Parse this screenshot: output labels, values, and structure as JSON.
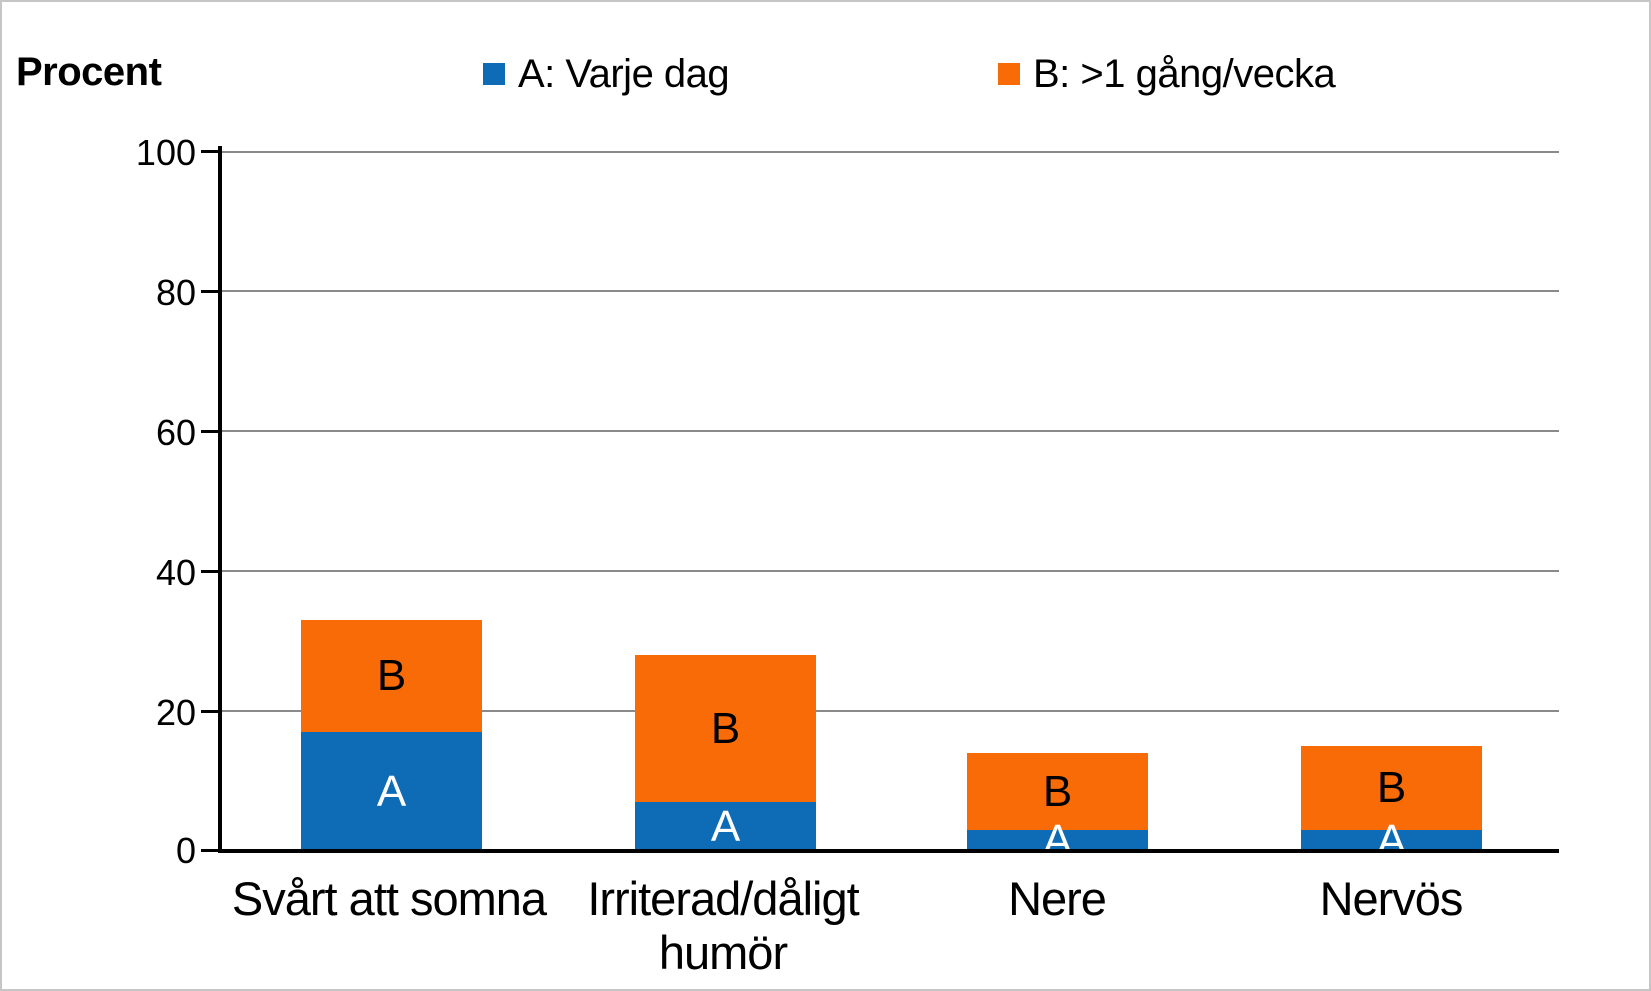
{
  "chart_data": {
    "type": "bar",
    "stacked": true,
    "ylabel": "Procent",
    "categories": [
      "Svårt att somna",
      "Irriterad/dåligt humör",
      "Nere",
      "Nervös"
    ],
    "series": [
      {
        "name": "A: Varje dag",
        "code": "A",
        "color": "#0e6bb5",
        "label_color": "#ffffff",
        "values": [
          17,
          7,
          3,
          3
        ]
      },
      {
        "name": "B: >1 gång/vecka",
        "code": "B",
        "color": "#f96b06",
        "label_color": "#000000",
        "values": [
          16,
          21,
          11,
          12
        ]
      }
    ],
    "ylim": [
      0,
      100
    ],
    "yticks": [
      100,
      80,
      60,
      40,
      20,
      0
    ],
    "grid": true,
    "legend_position": "top",
    "gridline_color": "#8a8a8a"
  }
}
